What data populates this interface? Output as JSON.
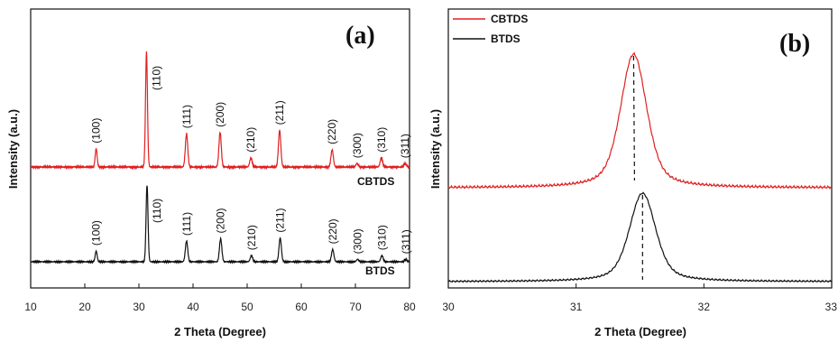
{
  "chart_data": [
    {
      "type": "line",
      "panel_label": "(a)",
      "xlabel": "2 Theta (Degree)",
      "ylabel": "Intensity (a.u.)",
      "xlim": [
        10,
        80
      ],
      "xticks": [
        "10",
        "20",
        "30",
        "40",
        "50",
        "60",
        "70",
        "80"
      ],
      "y_ticks_shown": false,
      "grid": false,
      "series": [
        {
          "name": "CBTDS",
          "color": "#e02020",
          "peaks": [
            {
              "x": 22.1,
              "label": "(100)",
              "height": 0.16
            },
            {
              "x": 31.4,
              "label": "(110)",
              "height": 1.0
            },
            {
              "x": 38.8,
              "label": "(111)",
              "height": 0.29
            },
            {
              "x": 45.0,
              "label": "(200)",
              "height": 0.3
            },
            {
              "x": 50.7,
              "label": "(210)",
              "height": 0.08
            },
            {
              "x": 56.0,
              "label": "(211)",
              "height": 0.32
            },
            {
              "x": 65.7,
              "label": "(220)",
              "height": 0.15
            },
            {
              "x": 70.3,
              "label": "(300)",
              "height": 0.03
            },
            {
              "x": 74.8,
              "label": "(310)",
              "height": 0.08
            },
            {
              "x": 79.2,
              "label": "(311)",
              "height": 0.03
            }
          ]
        },
        {
          "name": "BTDS",
          "color": "#111111",
          "peaks": [
            {
              "x": 22.1,
              "label": "(100)",
              "height": 0.14
            },
            {
              "x": 31.5,
              "label": "(110)",
              "height": 1.0
            },
            {
              "x": 38.8,
              "label": "(111)",
              "height": 0.27
            },
            {
              "x": 45.1,
              "label": "(200)",
              "height": 0.3
            },
            {
              "x": 50.8,
              "label": "(210)",
              "height": 0.08
            },
            {
              "x": 56.1,
              "label": "(211)",
              "height": 0.31
            },
            {
              "x": 65.8,
              "label": "(220)",
              "height": 0.16
            },
            {
              "x": 70.4,
              "label": "(300)",
              "height": 0.03
            },
            {
              "x": 74.9,
              "label": "(310)",
              "height": 0.08
            },
            {
              "x": 79.3,
              "label": "(311)",
              "height": 0.03
            }
          ]
        }
      ]
    },
    {
      "type": "line",
      "panel_label": "(b)",
      "xlabel": "2 Theta (Degree)",
      "ylabel": "Intensity (a.u.)",
      "xlim": [
        30,
        33
      ],
      "xticks": [
        "30",
        "31",
        "32",
        "33"
      ],
      "y_ticks_shown": false,
      "grid": false,
      "legend": "top-left",
      "series": [
        {
          "name": "CBTDS",
          "color": "#e02020",
          "peak_x": 31.45
        },
        {
          "name": "BTDS",
          "color": "#111111",
          "peak_x": 31.52
        }
      ]
    }
  ]
}
